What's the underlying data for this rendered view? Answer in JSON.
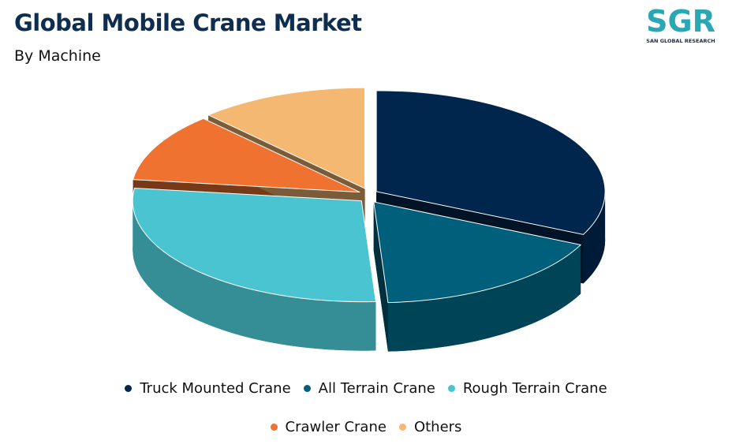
{
  "logo": {
    "text": "SGR",
    "tagline": "SAN GLOBAL RESEARCH"
  },
  "chart_data": {
    "type": "pie",
    "title": "Global Mobile Crane Market",
    "subtitle": "By Machine",
    "categories": [
      "Truck Mounted Crane",
      "All Terrain Crane",
      "Rough Terrain Crane",
      "Crawler Crane",
      "Others"
    ],
    "values": [
      32,
      17,
      28,
      11,
      12
    ],
    "colors": [
      "#00264d",
      "#005f7a",
      "#4ac4d0",
      "#f07230",
      "#f5b872"
    ]
  }
}
